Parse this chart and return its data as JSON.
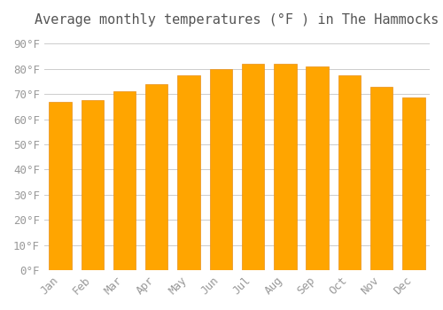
{
  "title": "Average monthly temperatures (°F ) in The Hammocks",
  "months": [
    "Jan",
    "Feb",
    "Mar",
    "Apr",
    "May",
    "Jun",
    "Jul",
    "Aug",
    "Sep",
    "Oct",
    "Nov",
    "Dec"
  ],
  "values": [
    67,
    67.5,
    71,
    74,
    77.5,
    80,
    82,
    82,
    81,
    77.5,
    73,
    68.5
  ],
  "bar_color": "#FFA500",
  "bar_edge_color": "#E8901A",
  "background_color": "#FFFFFF",
  "grid_color": "#CCCCCC",
  "yticks": [
    0,
    10,
    20,
    30,
    40,
    50,
    60,
    70,
    80,
    90
  ],
  "ylim": [
    0,
    93
  ],
  "title_fontsize": 11,
  "tick_fontsize": 9,
  "font_family": "monospace"
}
